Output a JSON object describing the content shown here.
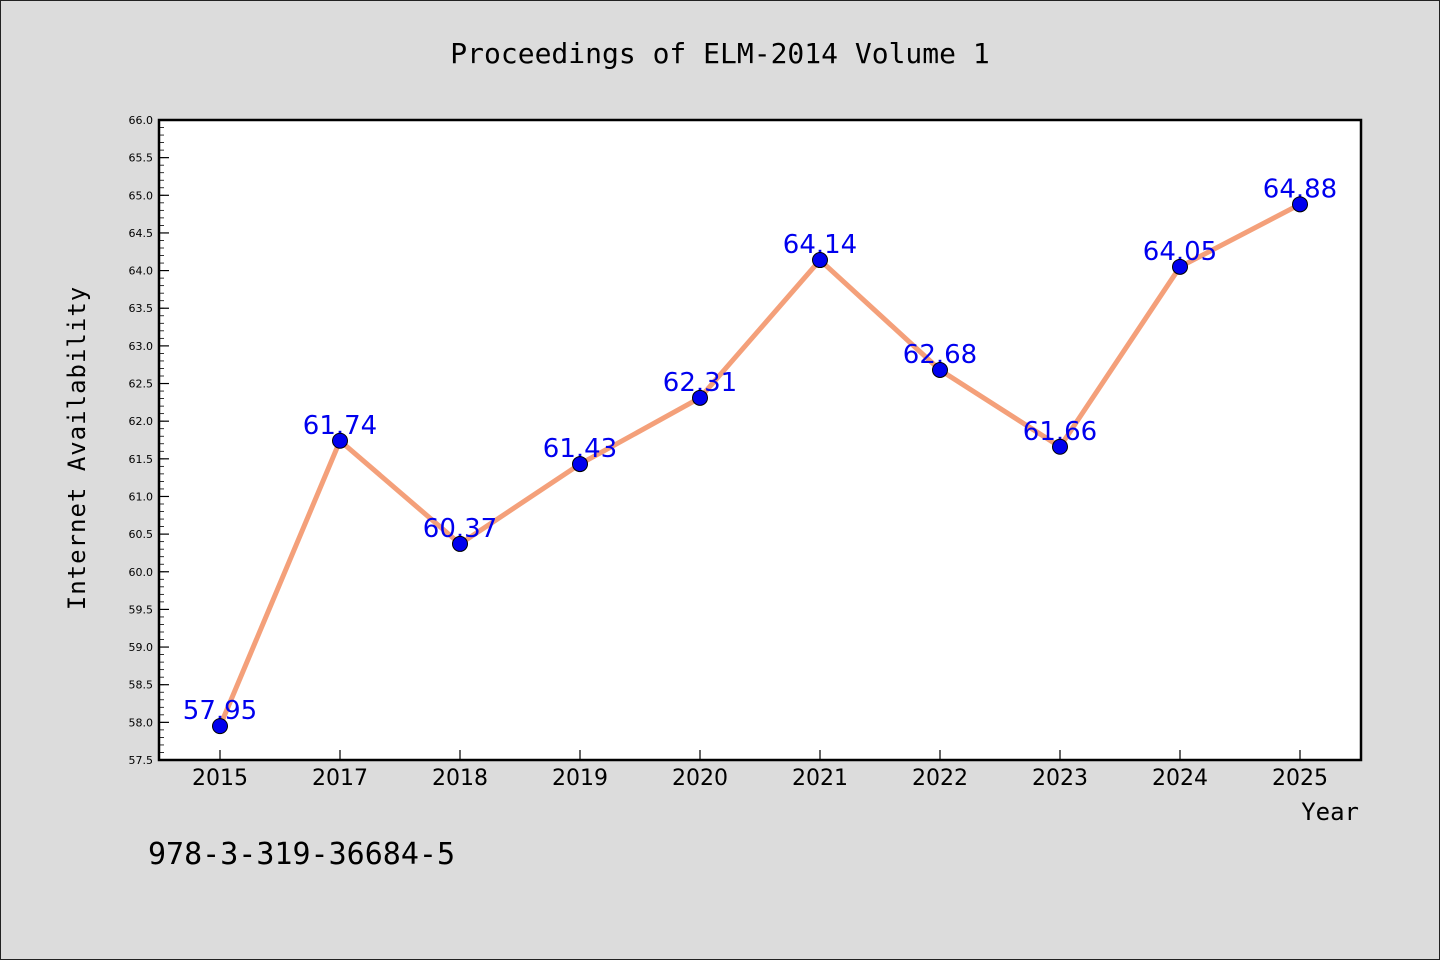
{
  "chart_data": {
    "type": "line",
    "title": "Proceedings of ELM-2014 Volume 1",
    "xlabel": "Year",
    "ylabel": "Internet Availability",
    "footer_text": "978-3-319-36684-5",
    "categories": [
      "2015",
      "2017",
      "2018",
      "2019",
      "2020",
      "2021",
      "2022",
      "2023",
      "2024",
      "2025"
    ],
    "series": [
      {
        "values": [
          57.95,
          61.74,
          60.37,
          61.43,
          62.31,
          64.14,
          62.68,
          61.66,
          64.05,
          64.88
        ],
        "line_color": "#f4a07a",
        "marker_color": "#0000ee"
      }
    ],
    "data_labels": [
      "57.95",
      "61.74",
      "60.37",
      "61.43",
      "62.31",
      "64.14",
      "62.68",
      "61.66",
      "64.05",
      "64.88"
    ],
    "data_label_color": "#0000ee",
    "ylim": [
      57.5,
      66.0
    ],
    "yticks": [
      "57.5",
      "58.0",
      "58.5",
      "59.0",
      "59.5",
      "60.0",
      "60.5",
      "61.0",
      "61.5",
      "62.0",
      "62.5",
      "63.0",
      "63.5",
      "64.0",
      "64.5",
      "65.0",
      "65.5",
      "66.0"
    ],
    "grid": false,
    "legend": "none",
    "background_color": "#dcdcdc",
    "plot_background_color": "#ffffff"
  }
}
